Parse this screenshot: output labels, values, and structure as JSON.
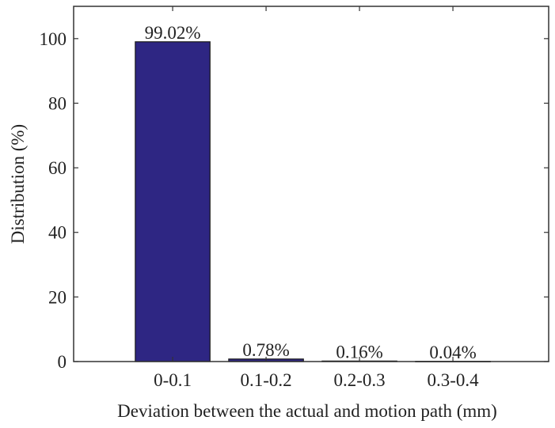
{
  "chart_data": {
    "type": "bar",
    "categories": [
      "0-0.1",
      "0.1-0.2",
      "0.2-0.3",
      "0.3-0.4"
    ],
    "values": [
      99.02,
      0.78,
      0.16,
      0.04
    ],
    "data_labels": [
      "99.02%",
      "0.78%",
      "0.16%",
      "0.04%"
    ],
    "xlabel": "Deviation between the actual and motion path (mm)",
    "ylabel": "Distribution (%)",
    "ylim": [
      0,
      110
    ],
    "yticks": [
      0,
      20,
      40,
      60,
      80,
      100
    ],
    "bar_color": "#2e2683",
    "grid": false,
    "legend": "none"
  }
}
